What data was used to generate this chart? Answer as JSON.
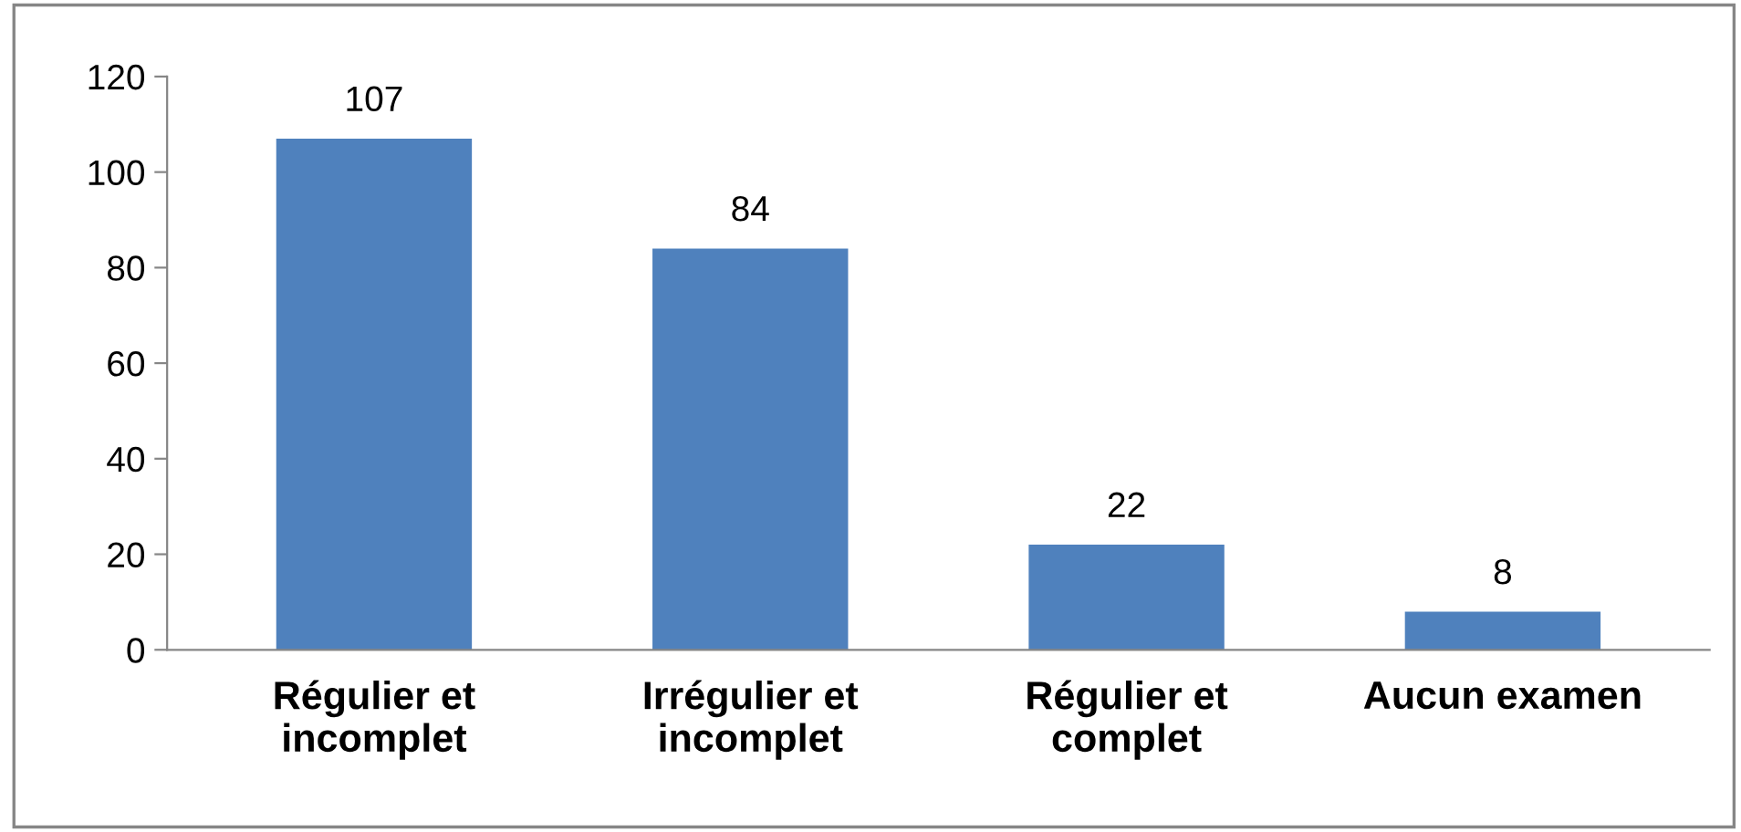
{
  "chart_data": {
    "type": "bar",
    "categories": [
      "Régulier et\nincomplet",
      "Irrégulier et\nincomplet",
      "Régulier et\ncomplet",
      "Aucun examen"
    ],
    "values": [
      107,
      84,
      22,
      8
    ],
    "color": "#4f81bd",
    "ylim": [
      0,
      120
    ],
    "yticks": [
      0,
      20,
      40,
      60,
      80,
      100,
      120
    ],
    "grid": false,
    "legend": false,
    "data_labels": true
  }
}
